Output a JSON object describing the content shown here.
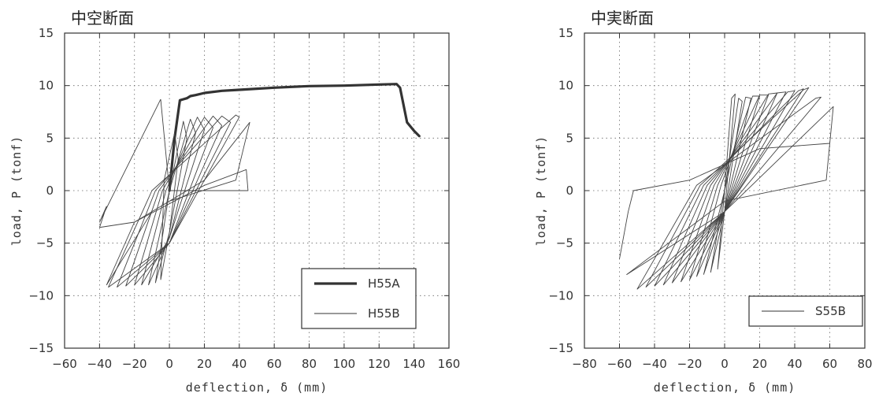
{
  "chart_data": [
    {
      "type": "line",
      "title": "中空断面",
      "xlabel": "deflection, δ (mm)",
      "ylabel": "load, P (tonf)",
      "xlim": [
        -60,
        160
      ],
      "ylim": [
        -15,
        15
      ],
      "xticks": [
        -60,
        -40,
        -20,
        0,
        20,
        40,
        60,
        80,
        100,
        120,
        140,
        160
      ],
      "yticks": [
        -15,
        -10,
        -5,
        0,
        5,
        10,
        15
      ],
      "grid": true,
      "legend": "bottom-right",
      "series": [
        {
          "name": "H55A",
          "style": "thick",
          "x": [
            0,
            3,
            6,
            8,
            10,
            12,
            15,
            20,
            30,
            40,
            60,
            80,
            100,
            120,
            130,
            132,
            136,
            140,
            143
          ],
          "y": [
            0,
            5,
            8.6,
            8.7,
            8.8,
            9.0,
            9.1,
            9.3,
            9.5,
            9.6,
            9.8,
            9.95,
            10.0,
            10.1,
            10.15,
            9.8,
            6.5,
            5.7,
            5.2
          ]
        },
        {
          "name": "H55B",
          "style": "thin",
          "loops": [
            {
              "x": [
                -5,
                0,
                5,
                3,
                -3,
                -5
              ],
              "y": [
                -8.5,
                -4,
                3,
                5.5,
                1,
                -8.5
              ]
            },
            {
              "x": [
                -8,
                0,
                10,
                8,
                0,
                -8
              ],
              "y": [
                -8.8,
                -4,
                5,
                6.6,
                0,
                -8.8
              ]
            },
            {
              "x": [
                -12,
                0,
                15,
                12,
                0,
                -12
              ],
              "y": [
                -9,
                -4.5,
                5.5,
                6.8,
                0,
                -9
              ]
            },
            {
              "x": [
                -16,
                0,
                20,
                16,
                -2,
                -16
              ],
              "y": [
                -9,
                -4.5,
                5.8,
                7,
                0,
                -9
              ]
            },
            {
              "x": [
                -20,
                0,
                25,
                20,
                -4,
                -20
              ],
              "y": [
                -9,
                -5,
                6,
                7,
                0,
                -9
              ]
            },
            {
              "x": [
                -25,
                0,
                30,
                25,
                -6,
                -25
              ],
              "y": [
                -9.1,
                -5,
                6.2,
                7.1,
                0,
                -9.1
              ]
            },
            {
              "x": [
                -30,
                0,
                35,
                30,
                -8,
                -30
              ],
              "y": [
                -9.2,
                -5,
                6.5,
                7.1,
                0,
                -9.2
              ]
            },
            {
              "x": [
                -35,
                0,
                40,
                38,
                -10,
                -35
              ],
              "y": [
                -9.2,
                -5,
                7,
                7.2,
                0,
                -9.2
              ]
            },
            {
              "x": [
                -36,
                -20,
                20,
                46,
                38,
                0,
                -10,
                -36
              ],
              "y": [
                -9,
                -3,
                1,
                6.5,
                1,
                -1,
                -2,
                -9
              ]
            },
            {
              "x": [
                -5,
                0,
                45,
                44,
                20,
                -20,
                -40,
                -36,
                -40,
                -5
              ],
              "y": [
                8.7,
                0,
                0,
                2,
                0.5,
                -3,
                -3.5,
                -1.5,
                -3,
                8.7
              ]
            }
          ]
        }
      ]
    },
    {
      "type": "line",
      "title": "中実断面",
      "xlabel": "deflection, δ (mm)",
      "ylabel": "load, P (tonf)",
      "xlim": [
        -80,
        80
      ],
      "ylim": [
        -15,
        15
      ],
      "xticks": [
        -80,
        -60,
        -40,
        -20,
        0,
        20,
        40,
        60,
        80
      ],
      "yticks": [
        -15,
        -10,
        -5,
        0,
        5,
        10,
        15
      ],
      "grid": true,
      "legend": "bottom-right",
      "series": [
        {
          "name": "S55B",
          "style": "thin",
          "loops": [
            {
              "x": [
                -4,
                0,
                6,
                4,
                0,
                -4
              ],
              "y": [
                -7.5,
                -2,
                9.2,
                8.8,
                0,
                -7.5
              ]
            },
            {
              "x": [
                -8,
                0,
                10,
                8,
                0,
                -8
              ],
              "y": [
                -7.8,
                -2,
                8.5,
                8.8,
                0,
                -7.8
              ]
            },
            {
              "x": [
                -12,
                0,
                15,
                12,
                0,
                -12
              ],
              "y": [
                -8,
                -2,
                8.8,
                8.9,
                0,
                -8
              ]
            },
            {
              "x": [
                -16,
                0,
                20,
                16,
                -2,
                -16
              ],
              "y": [
                -8.2,
                -2,
                9,
                9,
                0.5,
                -8.2
              ]
            },
            {
              "x": [
                -20,
                0,
                25,
                20,
                -4,
                -20
              ],
              "y": [
                -8.5,
                -2,
                9.1,
                9.1,
                0.5,
                -8.5
              ]
            },
            {
              "x": [
                -25,
                0,
                30,
                25,
                -6,
                -25
              ],
              "y": [
                -8.7,
                -2,
                9.3,
                9.2,
                0.5,
                -8.7
              ]
            },
            {
              "x": [
                -30,
                0,
                35,
                30,
                -8,
                -30
              ],
              "y": [
                -8.8,
                -2,
                9.4,
                9.3,
                0.5,
                -8.8
              ]
            },
            {
              "x": [
                -35,
                0,
                40,
                36,
                -10,
                -35
              ],
              "y": [
                -9,
                -2,
                9.5,
                9.4,
                0.5,
                -9
              ]
            },
            {
              "x": [
                -40,
                0,
                45,
                42,
                -12,
                -40
              ],
              "y": [
                -9.1,
                -2,
                9.7,
                9.5,
                0.5,
                -9.1
              ]
            },
            {
              "x": [
                -45,
                0,
                48,
                45,
                -14,
                -45
              ],
              "y": [
                -9.2,
                -2,
                9.8,
                9.6,
                0.5,
                -9.2
              ]
            },
            {
              "x": [
                -50,
                0,
                55,
                52,
                -16,
                -50
              ],
              "y": [
                -9.4,
                -2,
                8.9,
                8.8,
                0.5,
                -9.4
              ]
            },
            {
              "x": [
                -56,
                0,
                62,
                58,
                0,
                -56
              ],
              "y": [
                -8,
                -2,
                8,
                1,
                -1,
                -8
              ]
            },
            {
              "x": [
                -60,
                -55,
                -52,
                -20,
                0,
                20,
                60
              ],
              "y": [
                -6.5,
                -2,
                0,
                1,
                2.5,
                4,
                4.5
              ]
            }
          ]
        }
      ]
    }
  ]
}
